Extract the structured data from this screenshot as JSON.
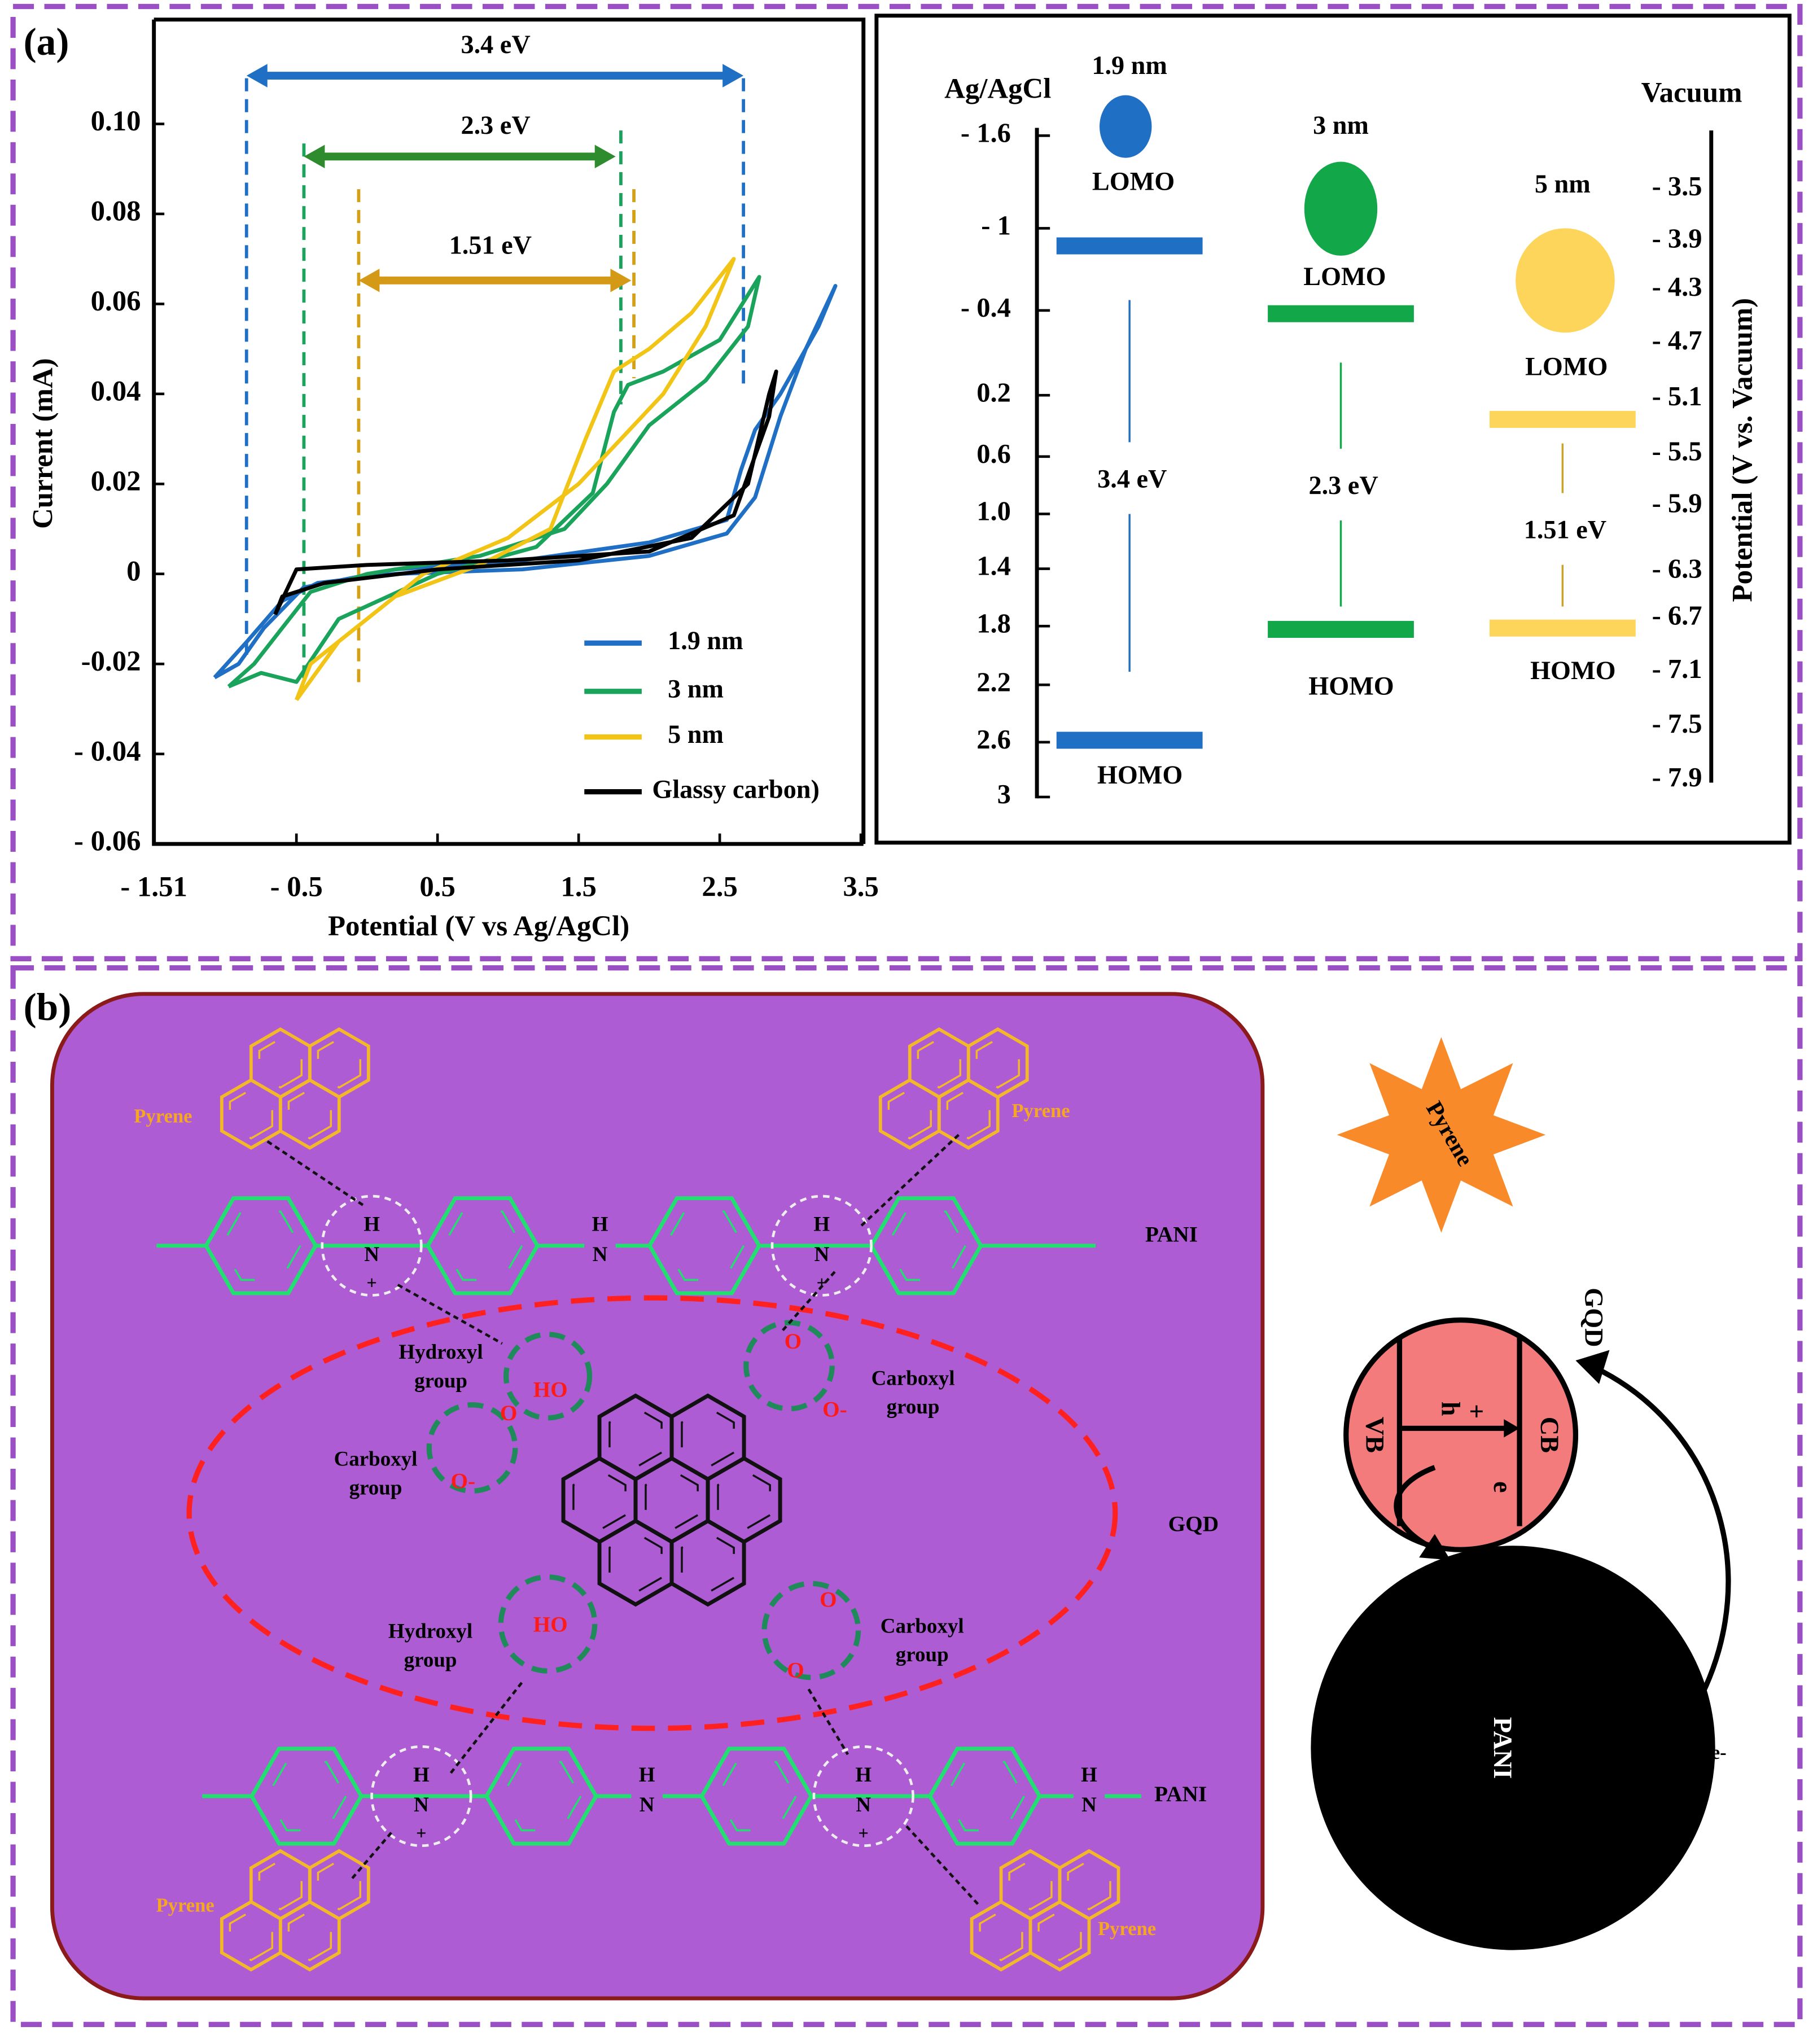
{
  "panel_a": {
    "label": "(a)"
  },
  "chart_data": {
    "type": "line",
    "x_label": "Potential (V vs Ag/AgCl)",
    "y_label": "Current (mA)",
    "xlim": [
      -1.51,
      3.5
    ],
    "ylim": [
      -0.06,
      0.12
    ],
    "xticks": [
      {
        "value": -1.51,
        "label": "- 1.51"
      },
      {
        "value": -0.5,
        "label": "- 0.5"
      },
      0.5,
      1.5,
      2.5,
      3.5
    ],
    "yticks": [
      {
        "value": 0.1,
        "label": "0.10"
      },
      0.08,
      0.06,
      0.04,
      0.02,
      0,
      -0.02,
      {
        "value": -0.04,
        "label": "- 0.04"
      },
      {
        "value": -0.06,
        "label": "- 0.06"
      }
    ],
    "annotations": [
      "3.4 eV",
      "2.3 eV",
      "1.51 eV"
    ],
    "series": [
      {
        "name": "1.9 nm",
        "color": "#1f6fc5",
        "x": [
          -1.08,
          -0.85,
          -0.6,
          -0.35,
          0.2,
          1.1,
          2.0,
          2.55,
          2.75,
          2.93,
          3.11,
          3.32,
          3.2,
          2.93,
          2.75,
          2.65,
          2.55,
          2.0,
          1.1,
          0.2,
          -0.45,
          -0.73,
          -0.91,
          -1.08
        ],
        "values": [
          -0.023,
          -0.015,
          -0.006,
          -0.002,
          0,
          0.001,
          0.004,
          0.009,
          0.017,
          0.035,
          0.05,
          0.064,
          0.055,
          0.04,
          0.032,
          0.023,
          0.012,
          0.007,
          0.003,
          0.001,
          -0.003,
          -0.012,
          -0.02,
          -0.023
        ]
      },
      {
        "name": "3 nm",
        "color": "#1aa35a",
        "x": [
          -0.98,
          -0.75,
          -0.5,
          -0.2,
          0.5,
          1.2,
          1.6,
          1.75,
          1.85,
          2.1,
          2.5,
          2.78,
          2.7,
          2.4,
          2.0,
          1.7,
          1.4,
          0.8,
          0,
          -0.4,
          -0.6,
          -0.8,
          -0.98
        ],
        "values": [
          -0.025,
          -0.022,
          -0.024,
          -0.01,
          0,
          0.006,
          0.018,
          0.036,
          0.042,
          0.045,
          0.052,
          0.066,
          0.055,
          0.043,
          0.033,
          0.02,
          0.01,
          0.004,
          0,
          -0.004,
          -0.012,
          -0.02,
          -0.025
        ]
      },
      {
        "name": "5 nm",
        "color": "#f2c416",
        "x": [
          -0.5,
          -0.2,
          0.2,
          0.8,
          1.3,
          1.55,
          1.75,
          2.0,
          2.3,
          2.6,
          2.4,
          2.1,
          1.8,
          1.5,
          1.0,
          0.4,
          0,
          -0.4,
          -0.5
        ],
        "values": [
          -0.028,
          -0.015,
          -0.005,
          0.002,
          0.01,
          0.03,
          0.045,
          0.05,
          0.058,
          0.07,
          0.055,
          0.04,
          0.03,
          0.02,
          0.008,
          0,
          -0.01,
          -0.02,
          -0.028
        ]
      },
      {
        "name": "Glassy carbon)",
        "color": "#000000",
        "x": [
          -0.65,
          -0.5,
          0,
          1,
          2,
          2.6,
          2.85,
          2.9,
          2.85,
          2.7,
          2.3,
          1.5,
          0.5,
          -0.3,
          -0.6,
          -0.65
        ],
        "values": [
          -0.009,
          0.001,
          0.002,
          0.003,
          0.005,
          0.013,
          0.035,
          0.045,
          0.04,
          0.02,
          0.008,
          0.003,
          0.001,
          -0.002,
          -0.005,
          -0.009
        ]
      }
    ]
  },
  "energy_diagram": {
    "left_axis_title": "Ag/AgCl",
    "right_axis_title": "Vacuum",
    "right_axis_label": "Potential (V vs. Vacuum)",
    "left_ticks": [
      "- 1.6",
      "- 1",
      "- 0.4",
      "0.2",
      "0.6",
      "1.0",
      "1.4",
      "1.8",
      "2.2",
      "2.6",
      "3"
    ],
    "right_ticks": [
      "- 3.5",
      "- 3.9",
      "- 4.3",
      "- 4.7",
      "- 5.1",
      "- 5.5",
      "- 5.9",
      "- 6.3",
      "- 6.7",
      "- 7.1",
      "- 7.5",
      "- 7.9"
    ],
    "dots": [
      {
        "size": "1.9 nm",
        "lomo": "LOMO",
        "homo": "HOMO",
        "gap": "3.4 eV",
        "color": "#1f6fc5"
      },
      {
        "size": "3 nm",
        "lomo": "LOMO",
        "homo": "HOMO",
        "gap": "2.3 eV",
        "color": "#12a84a"
      },
      {
        "size": "5 nm",
        "lomo": "LOMO",
        "homo": "HOMO",
        "gap": "1.51 eV",
        "color": "#fcd55a"
      }
    ]
  },
  "panel_b": {
    "label": "(b)",
    "pyrene": [
      "Pyrene",
      "Pyrene",
      "Pyrene",
      "Pyrene"
    ],
    "pani": [
      "PANI",
      "PANI"
    ],
    "amines": [
      {
        "h": "H",
        "n": "N",
        "charge": "+"
      },
      {
        "h": "H",
        "n": "N"
      },
      {
        "h": "H",
        "n": "N",
        "charge": "+"
      },
      {
        "h": "H",
        "n": "N",
        "charge": "+"
      },
      {
        "h": "H",
        "n": "N"
      },
      {
        "h": "H",
        "n": "N",
        "charge": "+"
      },
      {
        "h": "H",
        "n": "N"
      }
    ],
    "groups": [
      {
        "name": "Hydroxyl",
        "word": "group"
      },
      {
        "name": "Carboxyl",
        "word": "group"
      },
      {
        "name": "Carboxyl",
        "word": "group"
      },
      {
        "name": "Hydroxyl",
        "word": "group"
      },
      {
        "name": "Carboxyl",
        "word": "group"
      }
    ],
    "atoms": [
      "HO",
      "HO",
      "O",
      "O-",
      "O",
      "O-",
      "O",
      "O"
    ],
    "gqd": "GQD",
    "scheme": {
      "pyrene": "Pyrene",
      "gqd": "GQD",
      "vb": "VB",
      "cb": "CB",
      "hole": "h",
      "plus": "+",
      "electron": "e",
      "pani": "PANI",
      "e_out": "e-"
    }
  }
}
